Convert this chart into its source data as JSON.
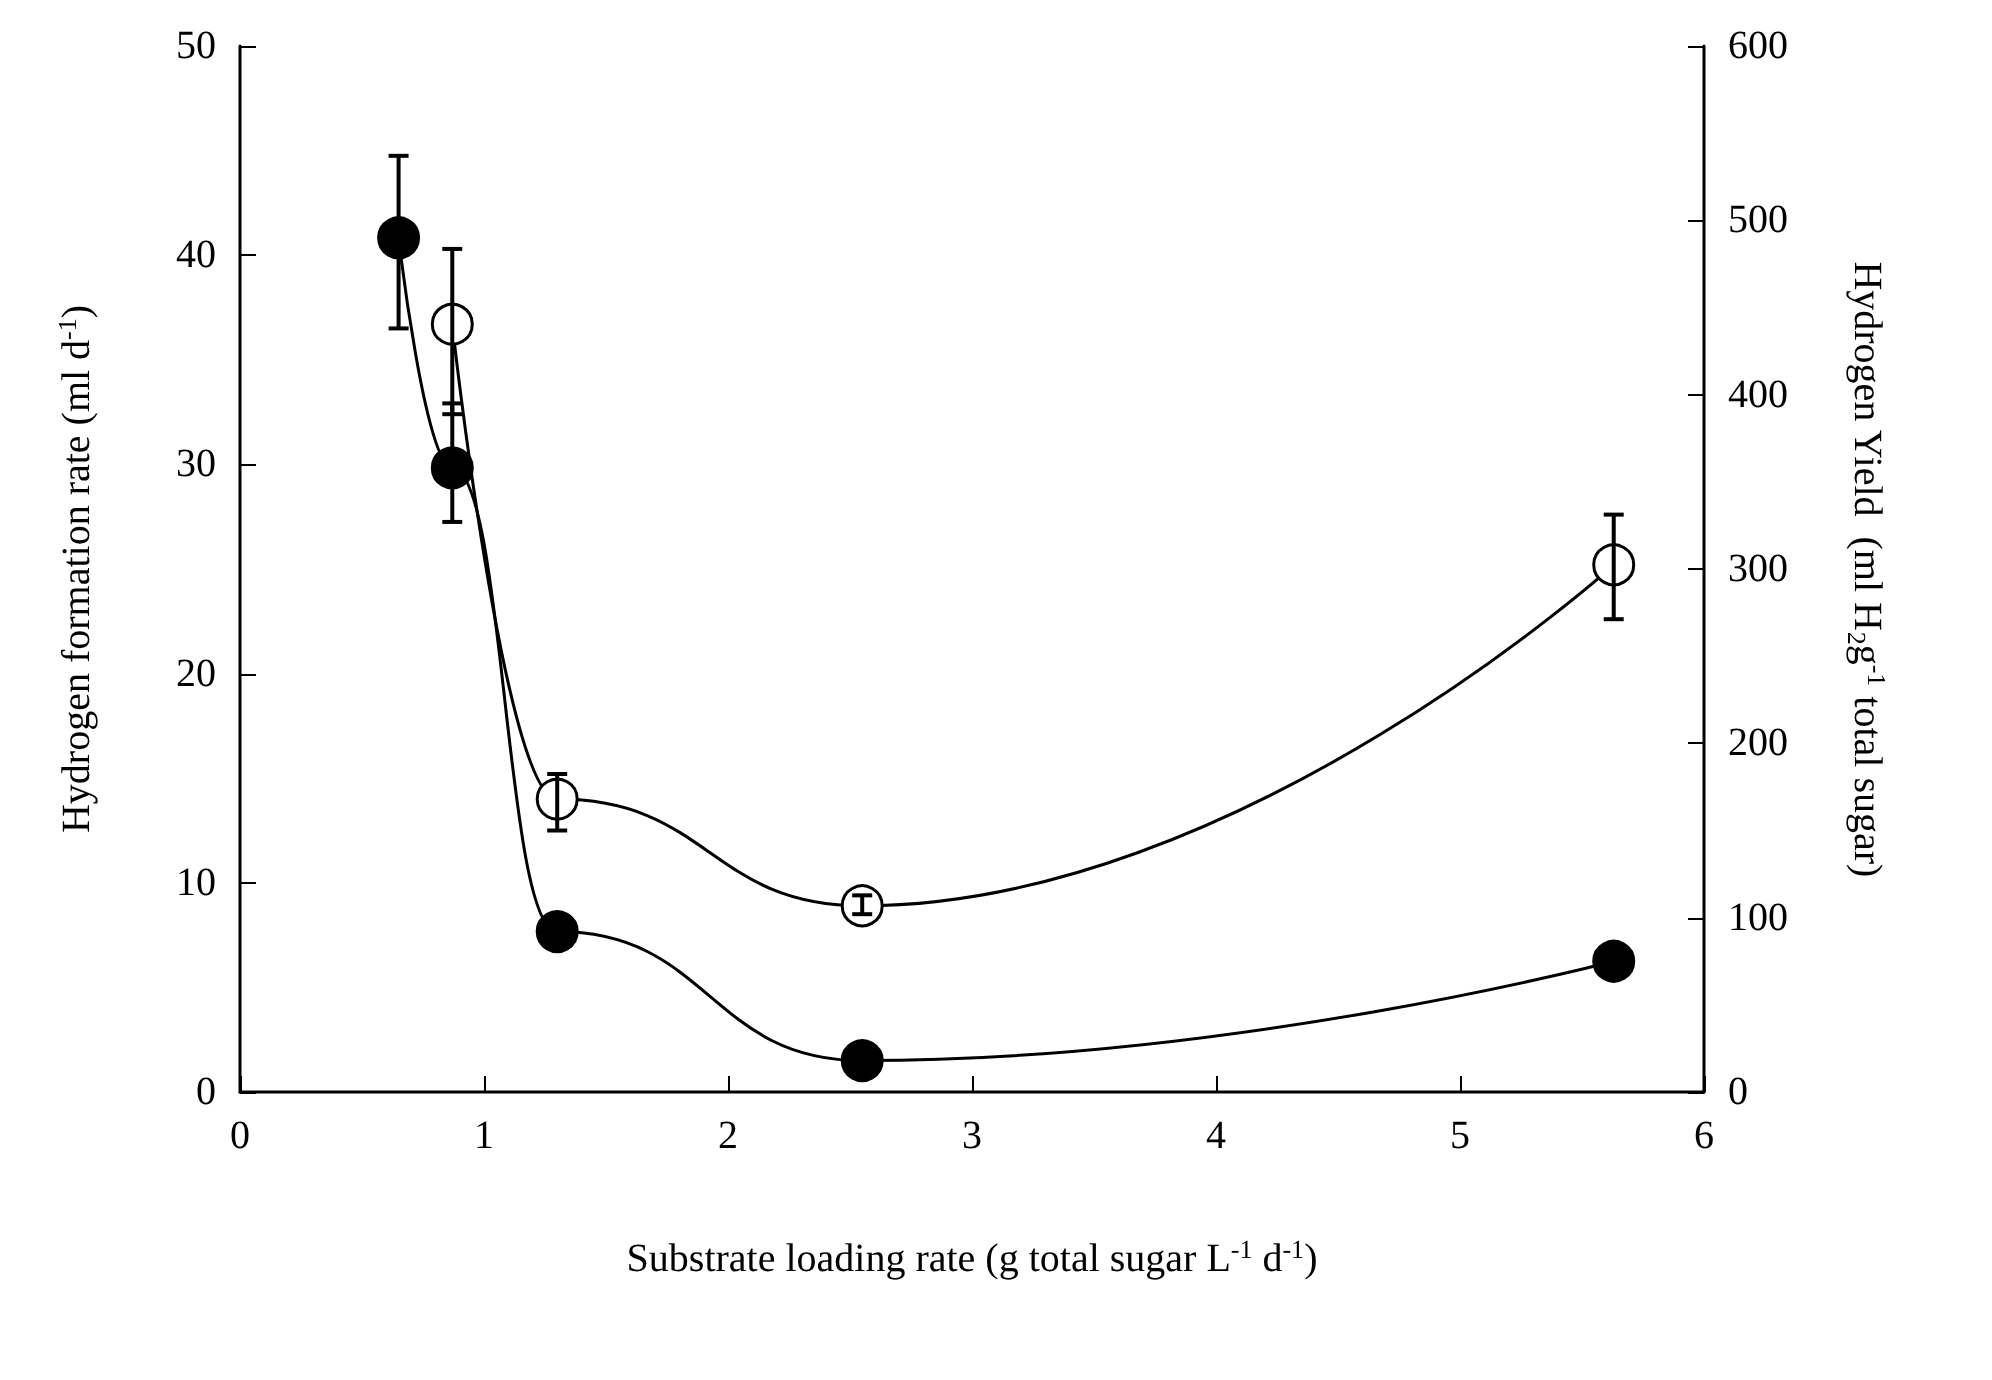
{
  "chart_data": {
    "type": "line",
    "xlabel": "Substrate loading rate (g total sugar L$^{-1}$ d$^{-1}$)",
    "ylabel": "Hydrogen formation rate (ml d$^{-1}$)",
    "y2label": "Hydrogen Yield  (ml H$_{2}$g$^{-1}$ total sugar)",
    "xlim": [
      0,
      6
    ],
    "xticks": [
      0,
      1,
      2,
      3,
      4,
      5,
      6
    ],
    "ylim": [
      0,
      50
    ],
    "yticks": [
      0,
      10,
      20,
      30,
      40,
      50
    ],
    "y2lim": [
      0,
      600
    ],
    "y2ticks": [
      0,
      100,
      200,
      300,
      400,
      500,
      600
    ],
    "grid": false,
    "marker": "circle",
    "series": [
      {
        "color": "#ffffff",
        "x": [
          0.87,
          1.3,
          2.55,
          5.63
        ],
        "values": [
          36.7,
          14,
          8.9,
          25.2
        ],
        "errors": [
          [
            32.4,
            40.3
          ],
          [
            12.5,
            15.2
          ],
          [
            8.5,
            9.4
          ],
          [
            22.6,
            27.6
          ]
        ]
      },
      {
        "color": "#000000",
        "axis": "y2",
        "x": [
          0.65,
          0.87,
          1.3,
          2.55,
          5.63
        ],
        "values": [
          490,
          358,
          92,
          18,
          75
        ],
        "errors": [
          [
            438,
            537
          ],
          [
            327,
            395
          ],
          null,
          null,
          null
        ]
      }
    ]
  }
}
